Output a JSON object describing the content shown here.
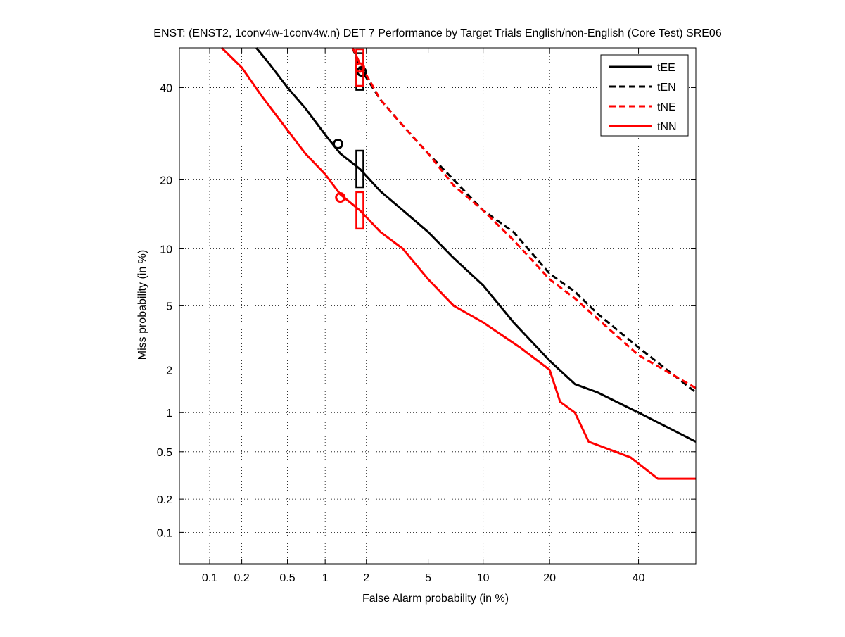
{
  "chart_data": {
    "type": "line",
    "title": "ENST: (ENST2, 1conv4w-1conv4w.n) DET 7 Performance by Target Trials English/non-English (Core Test) SRE06",
    "xlabel": "False Alarm probability (in %)",
    "ylabel": "Miss probability (in %)",
    "xscale": "probit",
    "yscale": "probit",
    "xlim": [
      0.05,
      55
    ],
    "ylim": [
      0.05,
      50
    ],
    "xticks": [
      0.1,
      0.2,
      0.5,
      1,
      2,
      5,
      10,
      20,
      40
    ],
    "xtick_labels": [
      "0.1",
      "0.2",
      "0.5",
      "1",
      "2",
      "5",
      "10",
      "20",
      "40"
    ],
    "yticks": [
      0.1,
      0.2,
      0.5,
      1,
      2,
      5,
      10,
      20,
      40
    ],
    "ytick_labels": [
      "0.1",
      "0.2",
      "0.5",
      "1",
      "2",
      "5",
      "10",
      "20",
      "40"
    ],
    "grid": true,
    "legend_position": "top-right",
    "series": [
      {
        "name": "tEE",
        "color": "#000000",
        "dash": "solid",
        "x": [
          0.27,
          0.35,
          0.5,
          0.7,
          1.0,
          1.3,
          1.8,
          2.5,
          3.5,
          5,
          7,
          10,
          14,
          20,
          25,
          30,
          40,
          55
        ],
        "y": [
          50,
          46,
          40,
          35,
          29,
          25,
          22,
          18,
          15,
          12,
          9,
          6.5,
          4,
          2.3,
          1.6,
          1.4,
          1.0,
          0.6
        ],
        "min_dcf": [
          1.25,
          27
        ],
        "act_dcf": [
          1.8,
          22
        ]
      },
      {
        "name": "tEN",
        "color": "#000000",
        "dash": "dashed",
        "x": [
          1.6,
          1.8,
          2.5,
          3.5,
          5,
          7,
          10,
          14,
          20,
          25,
          30,
          40,
          55
        ],
        "y": [
          50,
          45,
          37,
          31,
          25,
          20,
          15,
          12,
          7.5,
          6,
          4.5,
          2.8,
          1.4
        ],
        "min_dcf": [
          1.85,
          44
        ],
        "act_dcf": [
          1.8,
          44
        ]
      },
      {
        "name": "tNE",
        "color": "#ff0000",
        "dash": "dashed",
        "x": [
          1.6,
          1.8,
          2.5,
          3.5,
          5,
          7,
          10,
          14,
          20,
          25,
          30,
          40,
          55
        ],
        "y": [
          50,
          46,
          37,
          31,
          25,
          19,
          15,
          11,
          7,
          5.5,
          4.2,
          2.5,
          1.5
        ],
        "min_dcf": [
          1.8,
          45
        ],
        "act_dcf": [
          1.8,
          45
        ]
      },
      {
        "name": "tNN",
        "color": "#ff0000",
        "dash": "solid",
        "x": [
          0.13,
          0.2,
          0.3,
          0.5,
          0.7,
          1.0,
          1.3,
          1.8,
          2.5,
          3.5,
          5,
          7,
          10,
          15,
          20,
          22,
          25,
          28,
          38,
          45,
          55
        ],
        "y": [
          50,
          45,
          38,
          30,
          25,
          21,
          17.5,
          15,
          12,
          10,
          7,
          5,
          4,
          2.8,
          2.0,
          1.2,
          1.0,
          0.6,
          0.45,
          0.3,
          0.3
        ],
        "min_dcf": [
          1.3,
          17
        ],
        "act_dcf": [
          1.8,
          15
        ]
      }
    ]
  }
}
